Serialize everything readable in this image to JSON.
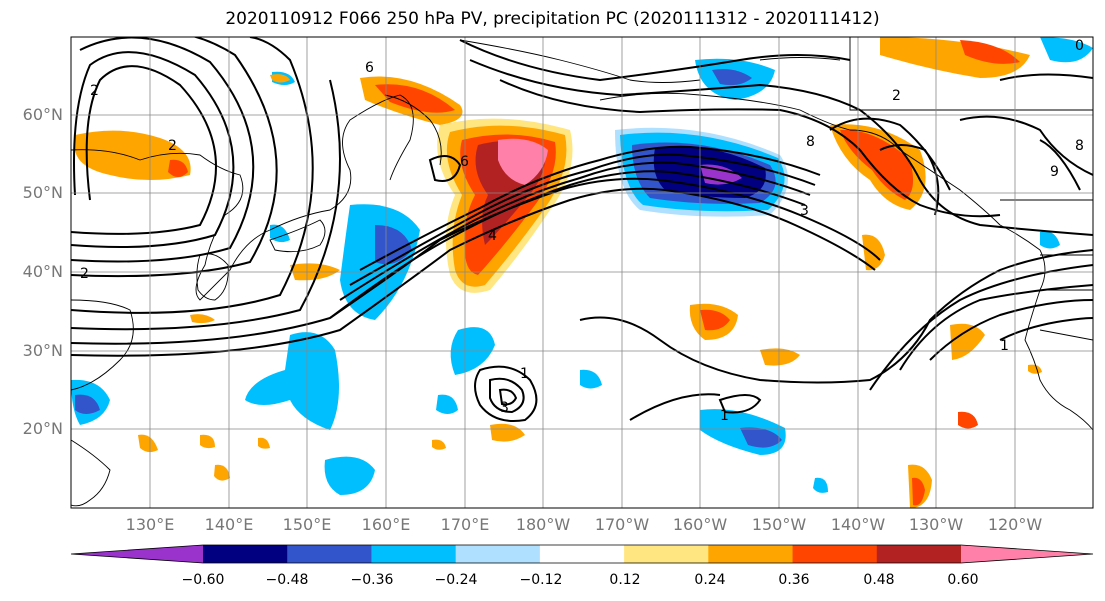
{
  "title": "2020110912 F066 250 hPa PV, precipitation PC (2020111312 - 2020111412)",
  "lat_labels": [
    "60°N",
    "50°N",
    "40°N",
    "30°N",
    "20°N"
  ],
  "lon_labels": [
    "130°E",
    "140°E",
    "150°E",
    "160°E",
    "170°E",
    "180°W",
    "170°W",
    "160°W",
    "150°W",
    "140°W",
    "130°W",
    "120°W"
  ],
  "colorbar": {
    "colors": [
      "#9933cc",
      "#000080",
      "#3355cc",
      "#00bfff",
      "#b0e0ff",
      "#ffffff",
      "#ffe680",
      "#ffa500",
      "#ff4500",
      "#b22222",
      "#ff80a8"
    ],
    "tick_labels": [
      "−0.60",
      "−0.48",
      "−0.36",
      "−0.24",
      "−0.12",
      "0.12",
      "0.24",
      "0.36",
      "0.48",
      "0.60"
    ]
  },
  "contour_labels": [
    "2",
    "2",
    "6",
    "6",
    "4",
    "3",
    "1",
    "8",
    "9",
    "1",
    "2",
    "0",
    "2",
    "1",
    "3",
    "8"
  ]
}
